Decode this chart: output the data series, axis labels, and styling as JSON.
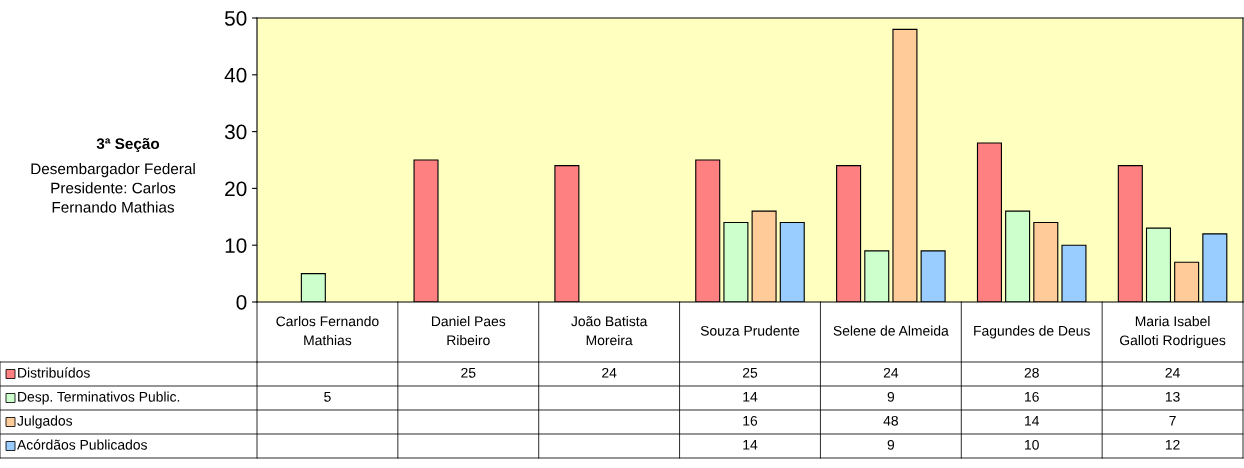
{
  "chart_data": {
    "type": "bar",
    "title": "3ª Seção",
    "subtitle": "Desembargador Federal\nPresidente: Carlos\nFernando Mathias",
    "categories": [
      "Carlos Fernando\nMathias",
      "Daniel Paes\nRibeiro",
      "João Batista\nMoreira",
      "Souza Prudente",
      "Selene de Almeida",
      "Fagundes de Deus",
      "Maria Isabel\nGalloti Rodrigues"
    ],
    "series": [
      {
        "name": "Distribuídos",
        "color": "#ff8080",
        "values": [
          null,
          25,
          24,
          25,
          24,
          28,
          24
        ]
      },
      {
        "name": "Desp. Terminativos Public.",
        "color": "#ccffcc",
        "values": [
          5,
          null,
          null,
          14,
          9,
          16,
          13
        ]
      },
      {
        "name": "Julgados",
        "color": "#ffcc99",
        "values": [
          null,
          null,
          null,
          16,
          48,
          14,
          7
        ]
      },
      {
        "name": "Acórdãos Publicados",
        "color": "#99ccff",
        "values": [
          null,
          null,
          null,
          14,
          9,
          10,
          12
        ]
      }
    ],
    "ylim": [
      0,
      50
    ],
    "yticks": [
      0,
      10,
      20,
      30,
      40,
      50
    ],
    "grid": false,
    "legend": "bottom",
    "data_labels": true
  }
}
